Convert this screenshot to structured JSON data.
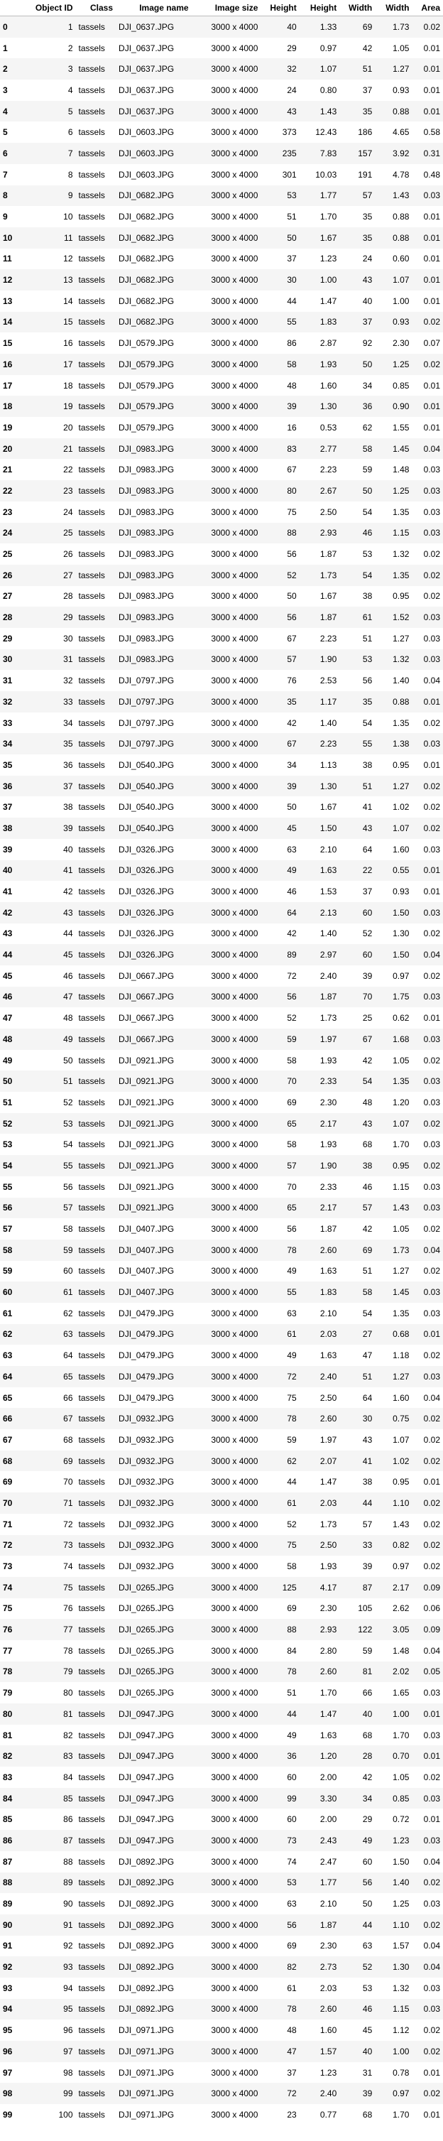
{
  "table": {
    "columns": [
      "Object ID",
      "Class",
      "Image name",
      "Image size",
      "Height",
      "Height",
      "Width",
      "Width",
      "Area"
    ],
    "rows": [
      [
        "0",
        "1",
        "tassels",
        "DJI_0637.JPG",
        "3000 x 4000",
        "40",
        "1.33",
        "69",
        "1.73",
        "0.02"
      ],
      [
        "1",
        "2",
        "tassels",
        "DJI_0637.JPG",
        "3000 x 4000",
        "29",
        "0.97",
        "42",
        "1.05",
        "0.01"
      ],
      [
        "2",
        "3",
        "tassels",
        "DJI_0637.JPG",
        "3000 x 4000",
        "32",
        "1.07",
        "51",
        "1.27",
        "0.01"
      ],
      [
        "3",
        "4",
        "tassels",
        "DJI_0637.JPG",
        "3000 x 4000",
        "24",
        "0.80",
        "37",
        "0.93",
        "0.01"
      ],
      [
        "4",
        "5",
        "tassels",
        "DJI_0637.JPG",
        "3000 x 4000",
        "43",
        "1.43",
        "35",
        "0.88",
        "0.01"
      ],
      [
        "5",
        "6",
        "tassels",
        "DJI_0603.JPG",
        "3000 x 4000",
        "373",
        "12.43",
        "186",
        "4.65",
        "0.58"
      ],
      [
        "6",
        "7",
        "tassels",
        "DJI_0603.JPG",
        "3000 x 4000",
        "235",
        "7.83",
        "157",
        "3.92",
        "0.31"
      ],
      [
        "7",
        "8",
        "tassels",
        "DJI_0603.JPG",
        "3000 x 4000",
        "301",
        "10.03",
        "191",
        "4.78",
        "0.48"
      ],
      [
        "8",
        "9",
        "tassels",
        "DJI_0682.JPG",
        "3000 x 4000",
        "53",
        "1.77",
        "57",
        "1.43",
        "0.03"
      ],
      [
        "9",
        "10",
        "tassels",
        "DJI_0682.JPG",
        "3000 x 4000",
        "51",
        "1.70",
        "35",
        "0.88",
        "0.01"
      ],
      [
        "10",
        "11",
        "tassels",
        "DJI_0682.JPG",
        "3000 x 4000",
        "50",
        "1.67",
        "35",
        "0.88",
        "0.01"
      ],
      [
        "11",
        "12",
        "tassels",
        "DJI_0682.JPG",
        "3000 x 4000",
        "37",
        "1.23",
        "24",
        "0.60",
        "0.01"
      ],
      [
        "12",
        "13",
        "tassels",
        "DJI_0682.JPG",
        "3000 x 4000",
        "30",
        "1.00",
        "43",
        "1.07",
        "0.01"
      ],
      [
        "13",
        "14",
        "tassels",
        "DJI_0682.JPG",
        "3000 x 4000",
        "44",
        "1.47",
        "40",
        "1.00",
        "0.01"
      ],
      [
        "14",
        "15",
        "tassels",
        "DJI_0682.JPG",
        "3000 x 4000",
        "55",
        "1.83",
        "37",
        "0.93",
        "0.02"
      ],
      [
        "15",
        "16",
        "tassels",
        "DJI_0579.JPG",
        "3000 x 4000",
        "86",
        "2.87",
        "92",
        "2.30",
        "0.07"
      ],
      [
        "16",
        "17",
        "tassels",
        "DJI_0579.JPG",
        "3000 x 4000",
        "58",
        "1.93",
        "50",
        "1.25",
        "0.02"
      ],
      [
        "17",
        "18",
        "tassels",
        "DJI_0579.JPG",
        "3000 x 4000",
        "48",
        "1.60",
        "34",
        "0.85",
        "0.01"
      ],
      [
        "18",
        "19",
        "tassels",
        "DJI_0579.JPG",
        "3000 x 4000",
        "39",
        "1.30",
        "36",
        "0.90",
        "0.01"
      ],
      [
        "19",
        "20",
        "tassels",
        "DJI_0579.JPG",
        "3000 x 4000",
        "16",
        "0.53",
        "62",
        "1.55",
        "0.01"
      ],
      [
        "20",
        "21",
        "tassels",
        "DJI_0983.JPG",
        "3000 x 4000",
        "83",
        "2.77",
        "58",
        "1.45",
        "0.04"
      ],
      [
        "21",
        "22",
        "tassels",
        "DJI_0983.JPG",
        "3000 x 4000",
        "67",
        "2.23",
        "59",
        "1.48",
        "0.03"
      ],
      [
        "22",
        "23",
        "tassels",
        "DJI_0983.JPG",
        "3000 x 4000",
        "80",
        "2.67",
        "50",
        "1.25",
        "0.03"
      ],
      [
        "23",
        "24",
        "tassels",
        "DJI_0983.JPG",
        "3000 x 4000",
        "75",
        "2.50",
        "54",
        "1.35",
        "0.03"
      ],
      [
        "24",
        "25",
        "tassels",
        "DJI_0983.JPG",
        "3000 x 4000",
        "88",
        "2.93",
        "46",
        "1.15",
        "0.03"
      ],
      [
        "25",
        "26",
        "tassels",
        "DJI_0983.JPG",
        "3000 x 4000",
        "56",
        "1.87",
        "53",
        "1.32",
        "0.02"
      ],
      [
        "26",
        "27",
        "tassels",
        "DJI_0983.JPG",
        "3000 x 4000",
        "52",
        "1.73",
        "54",
        "1.35",
        "0.02"
      ],
      [
        "27",
        "28",
        "tassels",
        "DJI_0983.JPG",
        "3000 x 4000",
        "50",
        "1.67",
        "38",
        "0.95",
        "0.02"
      ],
      [
        "28",
        "29",
        "tassels",
        "DJI_0983.JPG",
        "3000 x 4000",
        "56",
        "1.87",
        "61",
        "1.52",
        "0.03"
      ],
      [
        "29",
        "30",
        "tassels",
        "DJI_0983.JPG",
        "3000 x 4000",
        "67",
        "2.23",
        "51",
        "1.27",
        "0.03"
      ],
      [
        "30",
        "31",
        "tassels",
        "DJI_0983.JPG",
        "3000 x 4000",
        "57",
        "1.90",
        "53",
        "1.32",
        "0.03"
      ],
      [
        "31",
        "32",
        "tassels",
        "DJI_0797.JPG",
        "3000 x 4000",
        "76",
        "2.53",
        "56",
        "1.40",
        "0.04"
      ],
      [
        "32",
        "33",
        "tassels",
        "DJI_0797.JPG",
        "3000 x 4000",
        "35",
        "1.17",
        "35",
        "0.88",
        "0.01"
      ],
      [
        "33",
        "34",
        "tassels",
        "DJI_0797.JPG",
        "3000 x 4000",
        "42",
        "1.40",
        "54",
        "1.35",
        "0.02"
      ],
      [
        "34",
        "35",
        "tassels",
        "DJI_0797.JPG",
        "3000 x 4000",
        "67",
        "2.23",
        "55",
        "1.38",
        "0.03"
      ],
      [
        "35",
        "36",
        "tassels",
        "DJI_0540.JPG",
        "3000 x 4000",
        "34",
        "1.13",
        "38",
        "0.95",
        "0.01"
      ],
      [
        "36",
        "37",
        "tassels",
        "DJI_0540.JPG",
        "3000 x 4000",
        "39",
        "1.30",
        "51",
        "1.27",
        "0.02"
      ],
      [
        "37",
        "38",
        "tassels",
        "DJI_0540.JPG",
        "3000 x 4000",
        "50",
        "1.67",
        "41",
        "1.02",
        "0.02"
      ],
      [
        "38",
        "39",
        "tassels",
        "DJI_0540.JPG",
        "3000 x 4000",
        "45",
        "1.50",
        "43",
        "1.07",
        "0.02"
      ],
      [
        "39",
        "40",
        "tassels",
        "DJI_0326.JPG",
        "3000 x 4000",
        "63",
        "2.10",
        "64",
        "1.60",
        "0.03"
      ],
      [
        "40",
        "41",
        "tassels",
        "DJI_0326.JPG",
        "3000 x 4000",
        "49",
        "1.63",
        "22",
        "0.55",
        "0.01"
      ],
      [
        "41",
        "42",
        "tassels",
        "DJI_0326.JPG",
        "3000 x 4000",
        "46",
        "1.53",
        "37",
        "0.93",
        "0.01"
      ],
      [
        "42",
        "43",
        "tassels",
        "DJI_0326.JPG",
        "3000 x 4000",
        "64",
        "2.13",
        "60",
        "1.50",
        "0.03"
      ],
      [
        "43",
        "44",
        "tassels",
        "DJI_0326.JPG",
        "3000 x 4000",
        "42",
        "1.40",
        "52",
        "1.30",
        "0.02"
      ],
      [
        "44",
        "45",
        "tassels",
        "DJI_0326.JPG",
        "3000 x 4000",
        "89",
        "2.97",
        "60",
        "1.50",
        "0.04"
      ],
      [
        "45",
        "46",
        "tassels",
        "DJI_0667.JPG",
        "3000 x 4000",
        "72",
        "2.40",
        "39",
        "0.97",
        "0.02"
      ],
      [
        "46",
        "47",
        "tassels",
        "DJI_0667.JPG",
        "3000 x 4000",
        "56",
        "1.87",
        "70",
        "1.75",
        "0.03"
      ],
      [
        "47",
        "48",
        "tassels",
        "DJI_0667.JPG",
        "3000 x 4000",
        "52",
        "1.73",
        "25",
        "0.62",
        "0.01"
      ],
      [
        "48",
        "49",
        "tassels",
        "DJI_0667.JPG",
        "3000 x 4000",
        "59",
        "1.97",
        "67",
        "1.68",
        "0.03"
      ],
      [
        "49",
        "50",
        "tassels",
        "DJI_0921.JPG",
        "3000 x 4000",
        "58",
        "1.93",
        "42",
        "1.05",
        "0.02"
      ],
      [
        "50",
        "51",
        "tassels",
        "DJI_0921.JPG",
        "3000 x 4000",
        "70",
        "2.33",
        "54",
        "1.35",
        "0.03"
      ],
      [
        "51",
        "52",
        "tassels",
        "DJI_0921.JPG",
        "3000 x 4000",
        "69",
        "2.30",
        "48",
        "1.20",
        "0.03"
      ],
      [
        "52",
        "53",
        "tassels",
        "DJI_0921.JPG",
        "3000 x 4000",
        "65",
        "2.17",
        "43",
        "1.07",
        "0.02"
      ],
      [
        "53",
        "54",
        "tassels",
        "DJI_0921.JPG",
        "3000 x 4000",
        "58",
        "1.93",
        "68",
        "1.70",
        "0.03"
      ],
      [
        "54",
        "55",
        "tassels",
        "DJI_0921.JPG",
        "3000 x 4000",
        "57",
        "1.90",
        "38",
        "0.95",
        "0.02"
      ],
      [
        "55",
        "56",
        "tassels",
        "DJI_0921.JPG",
        "3000 x 4000",
        "70",
        "2.33",
        "46",
        "1.15",
        "0.03"
      ],
      [
        "56",
        "57",
        "tassels",
        "DJI_0921.JPG",
        "3000 x 4000",
        "65",
        "2.17",
        "57",
        "1.43",
        "0.03"
      ],
      [
        "57",
        "58",
        "tassels",
        "DJI_0407.JPG",
        "3000 x 4000",
        "56",
        "1.87",
        "42",
        "1.05",
        "0.02"
      ],
      [
        "58",
        "59",
        "tassels",
        "DJI_0407.JPG",
        "3000 x 4000",
        "78",
        "2.60",
        "69",
        "1.73",
        "0.04"
      ],
      [
        "59",
        "60",
        "tassels",
        "DJI_0407.JPG",
        "3000 x 4000",
        "49",
        "1.63",
        "51",
        "1.27",
        "0.02"
      ],
      [
        "60",
        "61",
        "tassels",
        "DJI_0407.JPG",
        "3000 x 4000",
        "55",
        "1.83",
        "58",
        "1.45",
        "0.03"
      ],
      [
        "61",
        "62",
        "tassels",
        "DJI_0479.JPG",
        "3000 x 4000",
        "63",
        "2.10",
        "54",
        "1.35",
        "0.03"
      ],
      [
        "62",
        "63",
        "tassels",
        "DJI_0479.JPG",
        "3000 x 4000",
        "61",
        "2.03",
        "27",
        "0.68",
        "0.01"
      ],
      [
        "63",
        "64",
        "tassels",
        "DJI_0479.JPG",
        "3000 x 4000",
        "49",
        "1.63",
        "47",
        "1.18",
        "0.02"
      ],
      [
        "64",
        "65",
        "tassels",
        "DJI_0479.JPG",
        "3000 x 4000",
        "72",
        "2.40",
        "51",
        "1.27",
        "0.03"
      ],
      [
        "65",
        "66",
        "tassels",
        "DJI_0479.JPG",
        "3000 x 4000",
        "75",
        "2.50",
        "64",
        "1.60",
        "0.04"
      ],
      [
        "66",
        "67",
        "tassels",
        "DJI_0932.JPG",
        "3000 x 4000",
        "78",
        "2.60",
        "30",
        "0.75",
        "0.02"
      ],
      [
        "67",
        "68",
        "tassels",
        "DJI_0932.JPG",
        "3000 x 4000",
        "59",
        "1.97",
        "43",
        "1.07",
        "0.02"
      ],
      [
        "68",
        "69",
        "tassels",
        "DJI_0932.JPG",
        "3000 x 4000",
        "62",
        "2.07",
        "41",
        "1.02",
        "0.02"
      ],
      [
        "69",
        "70",
        "tassels",
        "DJI_0932.JPG",
        "3000 x 4000",
        "44",
        "1.47",
        "38",
        "0.95",
        "0.01"
      ],
      [
        "70",
        "71",
        "tassels",
        "DJI_0932.JPG",
        "3000 x 4000",
        "61",
        "2.03",
        "44",
        "1.10",
        "0.02"
      ],
      [
        "71",
        "72",
        "tassels",
        "DJI_0932.JPG",
        "3000 x 4000",
        "52",
        "1.73",
        "57",
        "1.43",
        "0.02"
      ],
      [
        "72",
        "73",
        "tassels",
        "DJI_0932.JPG",
        "3000 x 4000",
        "75",
        "2.50",
        "33",
        "0.82",
        "0.02"
      ],
      [
        "73",
        "74",
        "tassels",
        "DJI_0932.JPG",
        "3000 x 4000",
        "58",
        "1.93",
        "39",
        "0.97",
        "0.02"
      ],
      [
        "74",
        "75",
        "tassels",
        "DJI_0265.JPG",
        "3000 x 4000",
        "125",
        "4.17",
        "87",
        "2.17",
        "0.09"
      ],
      [
        "75",
        "76",
        "tassels",
        "DJI_0265.JPG",
        "3000 x 4000",
        "69",
        "2.30",
        "105",
        "2.62",
        "0.06"
      ],
      [
        "76",
        "77",
        "tassels",
        "DJI_0265.JPG",
        "3000 x 4000",
        "88",
        "2.93",
        "122",
        "3.05",
        "0.09"
      ],
      [
        "77",
        "78",
        "tassels",
        "DJI_0265.JPG",
        "3000 x 4000",
        "84",
        "2.80",
        "59",
        "1.48",
        "0.04"
      ],
      [
        "78",
        "79",
        "tassels",
        "DJI_0265.JPG",
        "3000 x 4000",
        "78",
        "2.60",
        "81",
        "2.02",
        "0.05"
      ],
      [
        "79",
        "80",
        "tassels",
        "DJI_0265.JPG",
        "3000 x 4000",
        "51",
        "1.70",
        "66",
        "1.65",
        "0.03"
      ],
      [
        "80",
        "81",
        "tassels",
        "DJI_0947.JPG",
        "3000 x 4000",
        "44",
        "1.47",
        "40",
        "1.00",
        "0.01"
      ],
      [
        "81",
        "82",
        "tassels",
        "DJI_0947.JPG",
        "3000 x 4000",
        "49",
        "1.63",
        "68",
        "1.70",
        "0.03"
      ],
      [
        "82",
        "83",
        "tassels",
        "DJI_0947.JPG",
        "3000 x 4000",
        "36",
        "1.20",
        "28",
        "0.70",
        "0.01"
      ],
      [
        "83",
        "84",
        "tassels",
        "DJI_0947.JPG",
        "3000 x 4000",
        "60",
        "2.00",
        "42",
        "1.05",
        "0.02"
      ],
      [
        "84",
        "85",
        "tassels",
        "DJI_0947.JPG",
        "3000 x 4000",
        "99",
        "3.30",
        "34",
        "0.85",
        "0.03"
      ],
      [
        "85",
        "86",
        "tassels",
        "DJI_0947.JPG",
        "3000 x 4000",
        "60",
        "2.00",
        "29",
        "0.72",
        "0.01"
      ],
      [
        "86",
        "87",
        "tassels",
        "DJI_0947.JPG",
        "3000 x 4000",
        "73",
        "2.43",
        "49",
        "1.23",
        "0.03"
      ],
      [
        "87",
        "88",
        "tassels",
        "DJI_0892.JPG",
        "3000 x 4000",
        "74",
        "2.47",
        "60",
        "1.50",
        "0.04"
      ],
      [
        "88",
        "89",
        "tassels",
        "DJI_0892.JPG",
        "3000 x 4000",
        "53",
        "1.77",
        "56",
        "1.40",
        "0.02"
      ],
      [
        "89",
        "90",
        "tassels",
        "DJI_0892.JPG",
        "3000 x 4000",
        "63",
        "2.10",
        "50",
        "1.25",
        "0.03"
      ],
      [
        "90",
        "91",
        "tassels",
        "DJI_0892.JPG",
        "3000 x 4000",
        "56",
        "1.87",
        "44",
        "1.10",
        "0.02"
      ],
      [
        "91",
        "92",
        "tassels",
        "DJI_0892.JPG",
        "3000 x 4000",
        "69",
        "2.30",
        "63",
        "1.57",
        "0.04"
      ],
      [
        "92",
        "93",
        "tassels",
        "DJI_0892.JPG",
        "3000 x 4000",
        "82",
        "2.73",
        "52",
        "1.30",
        "0.04"
      ],
      [
        "93",
        "94",
        "tassels",
        "DJI_0892.JPG",
        "3000 x 4000",
        "61",
        "2.03",
        "53",
        "1.32",
        "0.03"
      ],
      [
        "94",
        "95",
        "tassels",
        "DJI_0892.JPG",
        "3000 x 4000",
        "78",
        "2.60",
        "46",
        "1.15",
        "0.03"
      ],
      [
        "95",
        "96",
        "tassels",
        "DJI_0971.JPG",
        "3000 x 4000",
        "48",
        "1.60",
        "45",
        "1.12",
        "0.02"
      ],
      [
        "96",
        "97",
        "tassels",
        "DJI_0971.JPG",
        "3000 x 4000",
        "47",
        "1.57",
        "40",
        "1.00",
        "0.02"
      ],
      [
        "97",
        "98",
        "tassels",
        "DJI_0971.JPG",
        "3000 x 4000",
        "37",
        "1.23",
        "31",
        "0.78",
        "0.01"
      ],
      [
        "98",
        "99",
        "tassels",
        "DJI_0971.JPG",
        "3000 x 4000",
        "72",
        "2.40",
        "39",
        "0.97",
        "0.02"
      ],
      [
        "99",
        "100",
        "tassels",
        "DJI_0971.JPG",
        "3000 x 4000",
        "23",
        "0.77",
        "68",
        "1.70",
        "0.01"
      ]
    ]
  }
}
